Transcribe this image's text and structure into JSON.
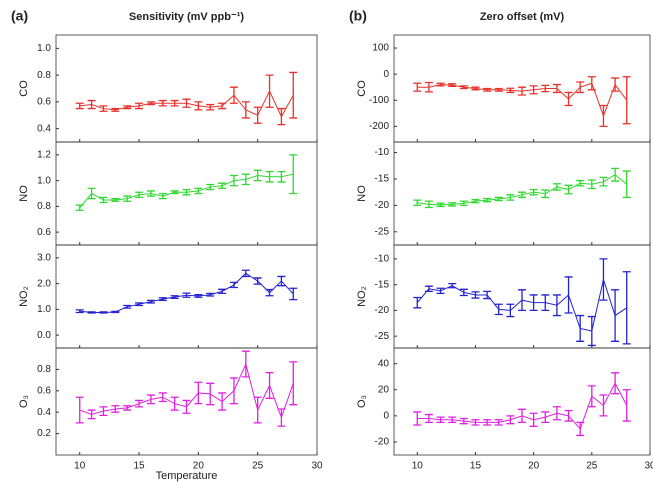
{
  "chart_data": [
    {
      "type": "errorbar",
      "panel_label": "(a)",
      "title": "Sensitivity (mV ppb⁻¹)",
      "ylabel": "CO",
      "color": "#e8302a",
      "x": [
        10,
        11,
        12,
        13,
        14,
        15,
        16,
        17,
        18,
        19,
        20,
        21,
        22,
        23,
        24,
        25,
        26,
        27,
        28
      ],
      "values": [
        0.57,
        0.58,
        0.55,
        0.54,
        0.56,
        0.57,
        0.59,
        0.59,
        0.59,
        0.59,
        0.57,
        0.56,
        0.57,
        0.65,
        0.54,
        0.5,
        0.68,
        0.49,
        0.65
      ],
      "errors": [
        0.02,
        0.03,
        0.02,
        0.01,
        0.01,
        0.02,
        0.01,
        0.02,
        0.02,
        0.03,
        0.03,
        0.02,
        0.02,
        0.06,
        0.06,
        0.06,
        0.12,
        0.06,
        0.17
      ],
      "xlim": [
        8,
        30
      ],
      "xticks": [
        10,
        15,
        20,
        25,
        30
      ],
      "xtick_labels": false,
      "ylim": [
        0.3,
        1.1
      ],
      "yticks": [
        0.4,
        0.6,
        0.8,
        {
          "value": 1,
          "label": "1.0"
        }
      ]
    },
    {
      "type": "errorbar",
      "ylabel": "NO",
      "color": "#2fd82f",
      "x": [
        10,
        11,
        12,
        13,
        14,
        15,
        16,
        17,
        18,
        19,
        20,
        21,
        22,
        23,
        24,
        25,
        26,
        27,
        28
      ],
      "values": [
        0.79,
        0.9,
        0.85,
        0.85,
        0.86,
        0.89,
        0.9,
        0.88,
        0.91,
        0.91,
        0.92,
        0.95,
        0.96,
        1.0,
        1.01,
        1.04,
        1.03,
        1.03,
        1.05
      ],
      "errors": [
        0.02,
        0.04,
        0.02,
        0.01,
        0.02,
        0.02,
        0.02,
        0.02,
        0.01,
        0.02,
        0.02,
        0.02,
        0.02,
        0.04,
        0.04,
        0.04,
        0.04,
        0.04,
        0.15
      ],
      "xlim": [
        8,
        30
      ],
      "xticks": [
        10,
        15,
        20,
        25,
        30
      ],
      "xtick_labels": false,
      "ylim": [
        0.5,
        1.3
      ],
      "yticks": [
        0.6,
        0.8,
        {
          "value": 1,
          "label": "1.0"
        },
        1.2
      ]
    },
    {
      "type": "errorbar",
      "ylabel": "NO₂",
      "color": "#2323cf",
      "x": [
        10,
        11,
        12,
        13,
        14,
        15,
        16,
        17,
        18,
        19,
        20,
        21,
        22,
        23,
        24,
        25,
        26,
        27,
        28
      ],
      "values": [
        0.93,
        0.88,
        0.88,
        0.9,
        1.1,
        1.2,
        1.3,
        1.4,
        1.48,
        1.55,
        1.52,
        1.57,
        1.7,
        1.95,
        2.4,
        2.1,
        1.65,
        2.1,
        1.6
      ],
      "errors": [
        0.05,
        0.02,
        0.02,
        0.02,
        0.05,
        0.05,
        0.05,
        0.05,
        0.05,
        0.08,
        0.05,
        0.05,
        0.08,
        0.1,
        0.12,
        0.12,
        0.12,
        0.18,
        0.22
      ],
      "xlim": [
        8,
        30
      ],
      "xticks": [
        10,
        15,
        20,
        25,
        30
      ],
      "xtick_labels": false,
      "ylim": [
        -0.5,
        3.5
      ],
      "yticks": [
        {
          "value": 0,
          "label": "0.0"
        },
        {
          "value": 1,
          "label": "1.0"
        },
        {
          "value": 2,
          "label": "2.0"
        },
        {
          "value": 3,
          "label": "3.0"
        }
      ]
    },
    {
      "type": "errorbar",
      "ylabel": "O₃",
      "color": "#e020e0",
      "xlabel": "Temperature",
      "x": [
        10,
        11,
        12,
        13,
        14,
        15,
        16,
        17,
        18,
        19,
        20,
        21,
        22,
        23,
        24,
        25,
        26,
        27,
        28
      ],
      "values": [
        0.42,
        0.38,
        0.41,
        0.43,
        0.44,
        0.48,
        0.52,
        0.54,
        0.48,
        0.45,
        0.58,
        0.57,
        0.5,
        0.6,
        0.85,
        0.42,
        0.65,
        0.35,
        0.67
      ],
      "errors": [
        0.12,
        0.04,
        0.04,
        0.03,
        0.02,
        0.03,
        0.04,
        0.04,
        0.06,
        0.06,
        0.1,
        0.1,
        0.08,
        0.12,
        0.12,
        0.12,
        0.12,
        0.08,
        0.2
      ],
      "xlim": [
        8,
        30
      ],
      "xticks": [
        10,
        15,
        20,
        25,
        30
      ],
      "xtick_labels": true,
      "ylim": [
        0,
        1
      ],
      "yticks": [
        0.2,
        0.4,
        0.6,
        0.8
      ]
    },
    {
      "type": "errorbar",
      "panel_label": "(b)",
      "title": "Zero offset (mV)",
      "ylabel": "CO",
      "color": "#e8302a",
      "x": [
        10,
        11,
        12,
        13,
        14,
        15,
        16,
        17,
        18,
        19,
        20,
        21,
        22,
        23,
        24,
        25,
        26,
        27,
        28
      ],
      "values": [
        -50,
        -50,
        -40,
        -42,
        -50,
        -55,
        -60,
        -60,
        -62,
        -65,
        -60,
        -55,
        -55,
        -95,
        -50,
        -35,
        -160,
        -40,
        -100
      ],
      "errors": [
        15,
        18,
        5,
        5,
        5,
        5,
        5,
        5,
        8,
        15,
        15,
        12,
        15,
        25,
        20,
        25,
        40,
        25,
        90
      ],
      "xlim": [
        8,
        30
      ],
      "xticks": [
        10,
        15,
        20,
        25,
        30
      ],
      "xtick_labels": false,
      "ylim": [
        -260,
        150
      ],
      "yticks": [
        -200,
        -100,
        0,
        100
      ]
    },
    {
      "type": "errorbar",
      "ylabel": "NO",
      "color": "#2fd82f",
      "x": [
        10,
        11,
        12,
        13,
        14,
        15,
        16,
        17,
        18,
        19,
        20,
        21,
        22,
        23,
        24,
        25,
        26,
        27,
        28
      ],
      "values": [
        -19.5,
        -19.8,
        -19.9,
        -19.8,
        -19.6,
        -19.2,
        -19.0,
        -18.8,
        -18.5,
        -18.0,
        -17.5,
        -17.8,
        -16.5,
        -17.0,
        -15.8,
        -16.0,
        -15.5,
        -14.2,
        -16.0
      ],
      "errors": [
        0.5,
        0.6,
        0.3,
        0.3,
        0.4,
        0.3,
        0.3,
        0.3,
        0.5,
        0.5,
        0.5,
        0.7,
        0.6,
        0.8,
        0.5,
        0.8,
        0.8,
        1.2,
        2.5
      ],
      "xlim": [
        8,
        30
      ],
      "xticks": [
        10,
        15,
        20,
        25,
        30
      ],
      "xtick_labels": false,
      "ylim": [
        -27.5,
        -8
      ],
      "yticks": [
        -25,
        -20,
        -15,
        -10
      ]
    },
    {
      "type": "errorbar",
      "ylabel": "NO₂",
      "color": "#2323cf",
      "x": [
        10,
        11,
        12,
        13,
        14,
        15,
        16,
        17,
        18,
        19,
        20,
        21,
        22,
        23,
        24,
        25,
        26,
        27,
        28
      ],
      "values": [
        -18.5,
        -15.8,
        -16.2,
        -15.2,
        -16.5,
        -17.0,
        -17.0,
        -19.8,
        -20.0,
        -18.0,
        -18.5,
        -18.5,
        -19.0,
        -17.0,
        -23.5,
        -24.0,
        -14.0,
        -21.0,
        -19.5
      ],
      "errors": [
        1,
        0.5,
        0.5,
        0.4,
        0.6,
        0.6,
        0.7,
        1,
        1.2,
        2,
        1.5,
        1.5,
        2,
        3.5,
        2.5,
        2.8,
        4,
        5,
        7
      ],
      "xlim": [
        8,
        30
      ],
      "xticks": [
        10,
        15,
        20,
        25,
        30
      ],
      "xtick_labels": false,
      "ylim": [
        -27.3,
        -7.3
      ],
      "yticks": [
        -25,
        -20,
        -15,
        -10
      ]
    },
    {
      "type": "errorbar",
      "ylabel": "O₃",
      "color": "#e020e0",
      "x": [
        10,
        11,
        12,
        13,
        14,
        15,
        16,
        17,
        18,
        19,
        20,
        21,
        22,
        23,
        24,
        25,
        26,
        27,
        28
      ],
      "values": [
        -2,
        -2,
        -3,
        -3,
        -4,
        -5,
        -5,
        -5,
        -3,
        0,
        -3,
        -1,
        2,
        0,
        -10,
        15,
        8,
        25,
        8
      ],
      "errors": [
        5,
        3,
        2,
        2,
        2,
        2,
        2,
        2,
        3,
        5,
        5,
        4,
        5,
        4,
        5,
        8,
        8,
        8,
        12
      ],
      "xlim": [
        8,
        30
      ],
      "xticks": [
        10,
        15,
        20,
        25,
        30
      ],
      "xtick_labels": true,
      "ylim": [
        -30,
        52
      ],
      "yticks": [
        -20,
        0,
        20,
        40
      ]
    }
  ]
}
